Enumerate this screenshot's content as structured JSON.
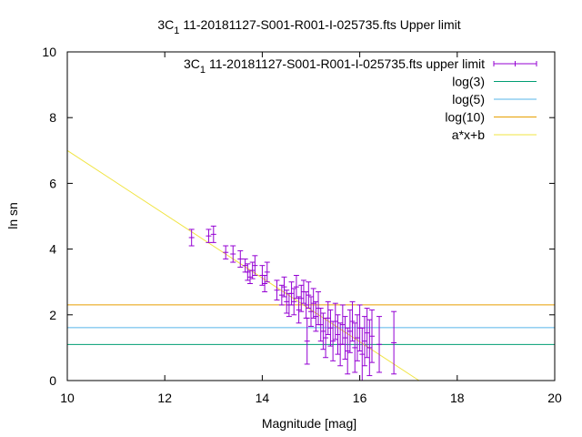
{
  "chart_data": {
    "type": "scatter",
    "title": "3C₁ 11-20181127-S001-R001-I-025735.fts Upper limit",
    "title_parts": {
      "prefix": "3C",
      "subscript": "1",
      "suffix": "11-20181127-S001-R001-I-025735.fts Upper limit"
    },
    "xlabel": "Magnitude [mag]",
    "ylabel": "ln sn",
    "xlim": [
      10,
      20
    ],
    "ylim": [
      0,
      10
    ],
    "x_ticks": [
      "10",
      "12",
      "14",
      "16",
      "18",
      "20"
    ],
    "y_ticks": [
      "0",
      "2",
      "4",
      "6",
      "8",
      "10"
    ],
    "grid": false,
    "legend_position": "top-right",
    "series": [
      {
        "name": "3C₁ 11-20181127-S001-R001-I-025735.fts upper limit",
        "name_parts": {
          "prefix": "3C",
          "subscript": "1",
          "suffix": "11-20181127-S001-R001-I-025735.fts upper limit"
        },
        "kind": "errorbars",
        "color": "#9400d3",
        "points": [
          {
            "x": 12.55,
            "y": 4.35,
            "yerr": 0.25
          },
          {
            "x": 12.9,
            "y": 4.4,
            "yerr": 0.2
          },
          {
            "x": 13.0,
            "y": 4.45,
            "yerr": 0.25
          },
          {
            "x": 13.25,
            "y": 3.9,
            "yerr": 0.2
          },
          {
            "x": 13.4,
            "y": 3.85,
            "yerr": 0.25
          },
          {
            "x": 13.55,
            "y": 3.7,
            "yerr": 0.25
          },
          {
            "x": 13.65,
            "y": 3.5,
            "yerr": 0.2
          },
          {
            "x": 13.7,
            "y": 3.3,
            "yerr": 0.25
          },
          {
            "x": 13.75,
            "y": 3.15,
            "yerr": 0.2
          },
          {
            "x": 13.8,
            "y": 3.35,
            "yerr": 0.25
          },
          {
            "x": 13.85,
            "y": 3.5,
            "yerr": 0.3
          },
          {
            "x": 14.0,
            "y": 3.2,
            "yerr": 0.3
          },
          {
            "x": 14.05,
            "y": 2.95,
            "yerr": 0.25
          },
          {
            "x": 14.1,
            "y": 3.3,
            "yerr": 0.3
          },
          {
            "x": 14.3,
            "y": 2.75,
            "yerr": 0.3
          },
          {
            "x": 14.4,
            "y": 2.6,
            "yerr": 0.3
          },
          {
            "x": 14.45,
            "y": 2.85,
            "yerr": 0.3
          },
          {
            "x": 14.5,
            "y": 2.4,
            "yerr": 0.35
          },
          {
            "x": 14.55,
            "y": 2.3,
            "yerr": 0.35
          },
          {
            "x": 14.6,
            "y": 2.65,
            "yerr": 0.35
          },
          {
            "x": 14.65,
            "y": 2.4,
            "yerr": 0.4
          },
          {
            "x": 14.7,
            "y": 2.85,
            "yerr": 0.35
          },
          {
            "x": 14.75,
            "y": 2.15,
            "yerr": 0.4
          },
          {
            "x": 14.8,
            "y": 2.5,
            "yerr": 0.4
          },
          {
            "x": 14.85,
            "y": 2.7,
            "yerr": 0.35
          },
          {
            "x": 14.9,
            "y": 2.3,
            "yerr": 0.4
          },
          {
            "x": 14.92,
            "y": 1.2,
            "yerr": 0.7
          },
          {
            "x": 14.95,
            "y": 2.6,
            "yerr": 0.4
          },
          {
            "x": 15.0,
            "y": 2.1,
            "yerr": 0.45
          },
          {
            "x": 15.05,
            "y": 2.35,
            "yerr": 0.45
          },
          {
            "x": 15.1,
            "y": 1.95,
            "yerr": 0.45
          },
          {
            "x": 15.15,
            "y": 2.2,
            "yerr": 0.5
          },
          {
            "x": 15.2,
            "y": 1.7,
            "yerr": 0.5
          },
          {
            "x": 15.25,
            "y": 1.5,
            "yerr": 0.55
          },
          {
            "x": 15.3,
            "y": 1.3,
            "yerr": 0.6
          },
          {
            "x": 15.35,
            "y": 1.9,
            "yerr": 0.5
          },
          {
            "x": 15.4,
            "y": 1.6,
            "yerr": 0.55
          },
          {
            "x": 15.45,
            "y": 1.2,
            "yerr": 0.6
          },
          {
            "x": 15.5,
            "y": 1.8,
            "yerr": 0.55
          },
          {
            "x": 15.55,
            "y": 1.4,
            "yerr": 0.6
          },
          {
            "x": 15.6,
            "y": 1.1,
            "yerr": 0.65
          },
          {
            "x": 15.65,
            "y": 1.7,
            "yerr": 0.6
          },
          {
            "x": 15.7,
            "y": 1.3,
            "yerr": 0.65
          },
          {
            "x": 15.75,
            "y": 0.9,
            "yerr": 0.7
          },
          {
            "x": 15.8,
            "y": 1.5,
            "yerr": 0.65
          },
          {
            "x": 15.85,
            "y": 1.8,
            "yerr": 0.6
          },
          {
            "x": 15.9,
            "y": 1.0,
            "yerr": 0.75
          },
          {
            "x": 15.95,
            "y": 1.3,
            "yerr": 0.7
          },
          {
            "x": 16.0,
            "y": 1.6,
            "yerr": 0.7
          },
          {
            "x": 16.05,
            "y": 0.8,
            "yerr": 0.8
          },
          {
            "x": 16.1,
            "y": 1.2,
            "yerr": 0.75
          },
          {
            "x": 16.15,
            "y": 1.45,
            "yerr": 0.75
          },
          {
            "x": 16.2,
            "y": 1.0,
            "yerr": 0.85
          },
          {
            "x": 16.25,
            "y": 1.35,
            "yerr": 0.8
          },
          {
            "x": 16.4,
            "y": 1.1,
            "yerr": 0.85
          },
          {
            "x": 16.7,
            "y": 1.15,
            "yerr": 0.95
          }
        ]
      },
      {
        "name": "log(3)",
        "kind": "hline",
        "y": 1.0986,
        "color": "#009e73"
      },
      {
        "name": "log(5)",
        "kind": "hline",
        "y": 1.6094,
        "color": "#56b4e9"
      },
      {
        "name": "log(10)",
        "kind": "hline",
        "y": 2.3026,
        "color": "#e69f00"
      },
      {
        "name": "a*x+b",
        "kind": "line",
        "a": -0.97,
        "b": 16.7,
        "color": "#f0e442"
      }
    ]
  }
}
